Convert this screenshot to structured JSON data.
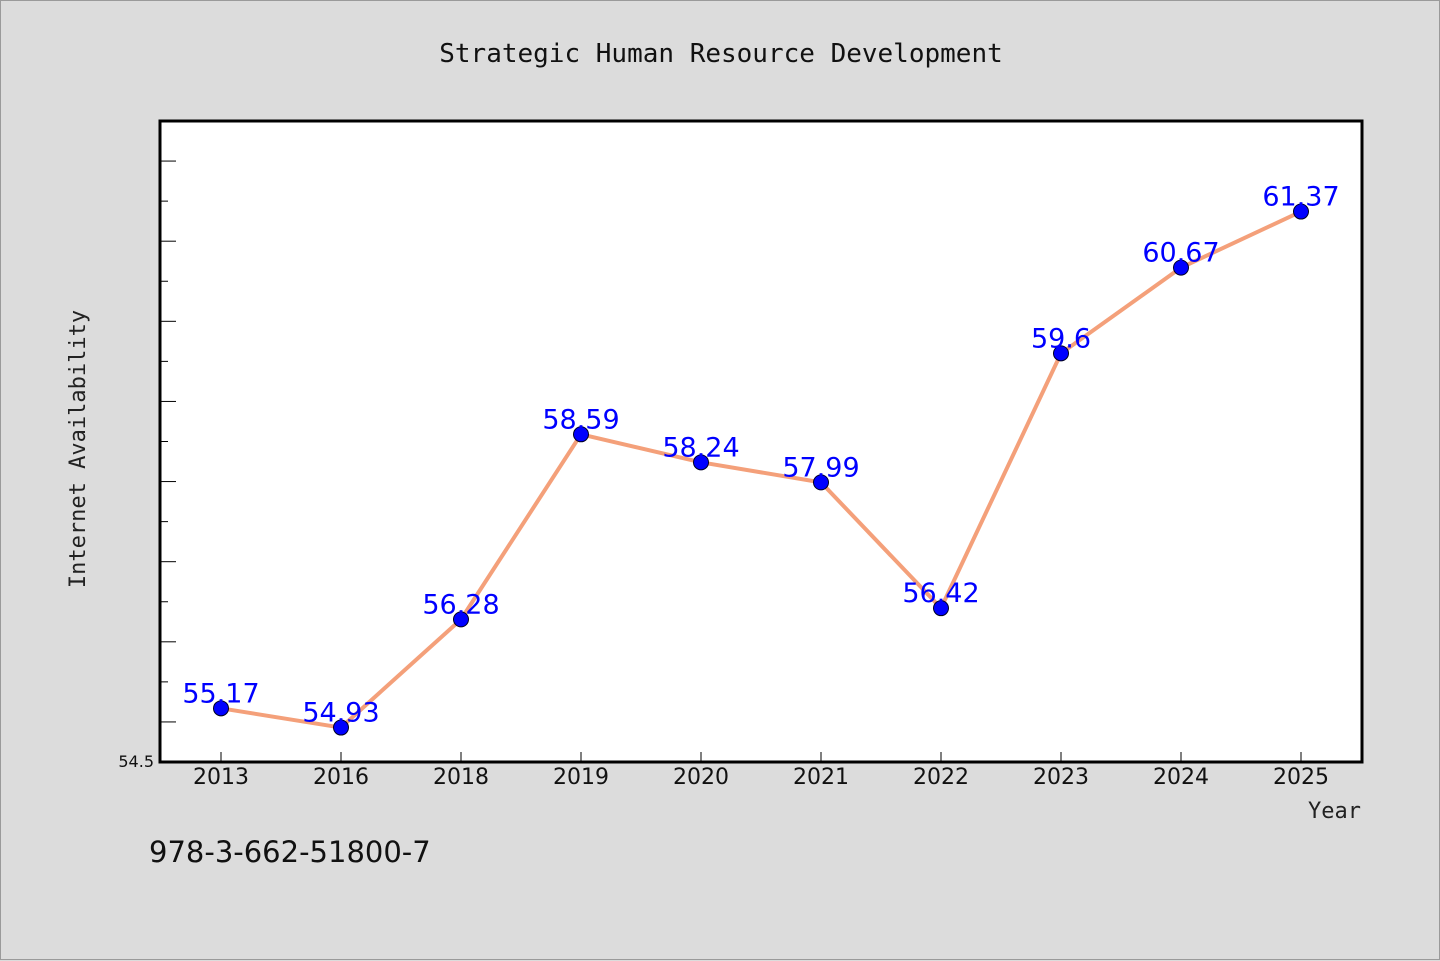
{
  "chart_data": {
    "type": "line",
    "title": "Strategic Human Resource Development",
    "xlabel": "Year",
    "ylabel": "Internet Availability",
    "categories": [
      "2013",
      "2016",
      "2018",
      "2019",
      "2020",
      "2021",
      "2022",
      "2023",
      "2024",
      "2025"
    ],
    "series": [
      {
        "values": [
          55.17,
          54.93,
          56.28,
          58.59,
          58.24,
          57.99,
          56.42,
          59.6,
          60.67,
          61.37
        ],
        "labels": [
          "55.17",
          "54.93",
          "56.28",
          "58.59",
          "58.24",
          "57.99",
          "56.42",
          "59.6",
          "60.67",
          "61.37"
        ]
      }
    ],
    "ylim": [
      54.5,
      62.5
    ],
    "y_tick_labels": [
      "54.5"
    ],
    "grid": false,
    "colors": {
      "line": "#f4a07a",
      "marker": "#0000ff",
      "label": "#0000ff"
    }
  },
  "footer": {
    "code": "978-3-662-51800-7"
  }
}
